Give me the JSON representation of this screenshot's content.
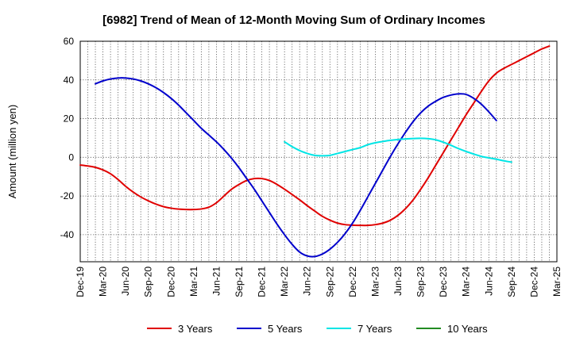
{
  "chart_data": {
    "type": "line",
    "title": "[6982]  Trend of Mean of 12-Month Moving Sum of Ordinary Incomes",
    "xlabel": "",
    "ylabel": "Amount (million yen)",
    "ylim": [
      -54,
      60
    ],
    "yticks": [
      60,
      40,
      20,
      0,
      -20,
      -40
    ],
    "ytick_labels": [
      "60",
      "40",
      "20",
      "0",
      "-20",
      "-40"
    ],
    "x_start": "Dec-19",
    "x_months_total": 63,
    "xtick_labels": [
      "Dec-19",
      "Mar-20",
      "Jun-20",
      "Sep-20",
      "Dec-20",
      "Mar-21",
      "Jun-21",
      "Sep-21",
      "Dec-21",
      "Mar-22",
      "Jun-22",
      "Sep-22",
      "Dec-22",
      "Mar-23",
      "Jun-23",
      "Sep-23",
      "Dec-23",
      "Mar-24",
      "Jun-24",
      "Sep-24",
      "Dec-24",
      "Mar-25"
    ],
    "grid": true,
    "legend_position": "bottom",
    "series": [
      {
        "name": "3 Years",
        "color": "#e00000",
        "start_month": 0,
        "values": [
          -4,
          -4.5,
          -5.2,
          -6.5,
          -8.5,
          -11.5,
          -15,
          -18,
          -20.5,
          -22.5,
          -24.2,
          -25.5,
          -26.3,
          -26.8,
          -27,
          -27,
          -26.7,
          -25.8,
          -23.5,
          -20,
          -16.5,
          -14,
          -12,
          -11,
          -11,
          -12,
          -14,
          -16.5,
          -19.2,
          -22,
          -25,
          -27.8,
          -30.5,
          -32.5,
          -34,
          -34.8,
          -35.1,
          -35.2,
          -35.2,
          -34.8,
          -34,
          -32.5,
          -30,
          -26.5,
          -22,
          -16.5,
          -10.5,
          -4,
          2.5,
          9,
          15.5,
          22,
          28,
          34,
          39.5,
          43.5,
          46,
          48,
          50,
          52,
          54,
          56,
          57.5
        ]
      },
      {
        "name": "5 Years",
        "color": "#0000cc",
        "start_month": 2,
        "values": [
          38,
          39.5,
          40.5,
          41,
          41,
          40.5,
          39.5,
          38,
          36,
          33.5,
          30.5,
          27,
          23,
          19,
          15,
          11.5,
          8,
          4,
          -0.5,
          -5.5,
          -11,
          -16.5,
          -22.5,
          -28.5,
          -34.5,
          -40,
          -45,
          -49,
          -51,
          -51.3,
          -50,
          -47.5,
          -44,
          -39.5,
          -34,
          -27.5,
          -20.5,
          -13.5,
          -6.5,
          0.5,
          7,
          13,
          18.5,
          23,
          26.5,
          29,
          31,
          32.2,
          32.8,
          32.5,
          30.5,
          27.5,
          23.5,
          19
        ]
      },
      {
        "name": "7 Years",
        "color": "#00e5e5",
        "start_month": 27,
        "values": [
          8,
          5.5,
          3.5,
          2,
          1,
          0.8,
          1,
          2,
          3,
          4,
          5,
          6.5,
          7.5,
          8.2,
          8.8,
          9.2,
          9.5,
          9.7,
          9.8,
          9.6,
          9,
          7.8,
          6.2,
          4.5,
          3,
          1.7,
          0.5,
          -0.3,
          -1,
          -1.8,
          -2.5
        ]
      },
      {
        "name": "10 Years",
        "color": "#228b22",
        "start_month": 0,
        "values": []
      }
    ]
  }
}
